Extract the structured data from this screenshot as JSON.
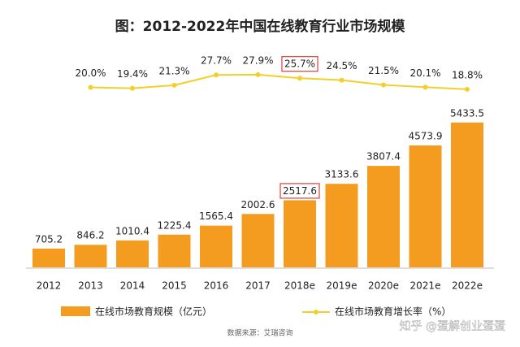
{
  "chart_data": {
    "type": "bar_line",
    "title": "图：2012-2022年中国在线教育行业市场规模",
    "categories": [
      "2012",
      "2013",
      "2014",
      "2015",
      "2016",
      "2017",
      "2018e",
      "2019e",
      "2020e",
      "2021e",
      "2022e"
    ],
    "series": [
      {
        "name": "在线市场教育规模（亿元）",
        "type": "bar",
        "color": "#f39c1f",
        "values": [
          705.2,
          846.2,
          1010.4,
          1225.4,
          1565.4,
          2002.6,
          2517.6,
          3133.6,
          3807.4,
          4573.9,
          5433.5
        ]
      },
      {
        "name": "在线市场教育增长率（%）",
        "type": "line",
        "axis": "y2",
        "color": "#f2cf2b",
        "values": [
          null,
          20.0,
          19.4,
          21.3,
          27.7,
          27.9,
          25.7,
          24.5,
          21.5,
          20.1,
          18.8
        ],
        "value_labels": [
          null,
          "20.0%",
          "19.4%",
          "21.3%",
          "27.7%",
          "27.9%",
          "25.7%",
          "24.5%",
          "21.5%",
          "20.1%",
          "18.8%"
        ]
      }
    ],
    "ylim": [
      0,
      8200
    ],
    "y2lim": [
      -92,
      44
    ],
    "highlight_index": 6,
    "highlight_color": "#d9403a",
    "source": "数据来源：艾瑞咨询",
    "watermark": "知乎 @蛋解创业蛋蛋"
  }
}
